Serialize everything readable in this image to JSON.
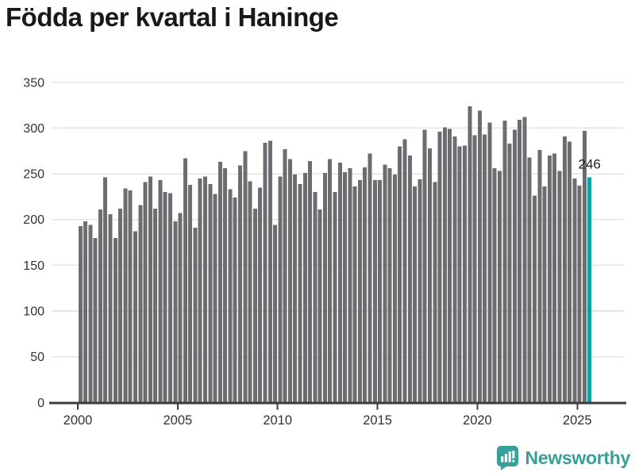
{
  "chart": {
    "title": "Födda per kvartal i Haninge"
  },
  "footer": {
    "brand": "Newsworthy"
  },
  "colors": {
    "bar": "#6c6c71",
    "highlight": "#0ba2a2",
    "axis": "#3d3d3f",
    "grid": "#e4e4e4",
    "title": "#191919",
    "tick_label": "#333333",
    "annotation": "#1f1f1f",
    "brand": "#38a098"
  },
  "chart_data": {
    "type": "bar",
    "title": "Födda per kvartal i Haninge",
    "frequency": "quarterly",
    "x_start": "2000-Q1",
    "x_end": "2025-Q3",
    "series": [
      {
        "name": "Födda per kvartal",
        "values": [
          193,
          198,
          194,
          180,
          211,
          246,
          206,
          180,
          212,
          234,
          232,
          187,
          216,
          241,
          247,
          212,
          243,
          230,
          229,
          198,
          207,
          267,
          238,
          191,
          245,
          247,
          239,
          228,
          263,
          256,
          233,
          224,
          259,
          275,
          242,
          212,
          235,
          284,
          286,
          194,
          247,
          277,
          266,
          249,
          239,
          251,
          264,
          230,
          211,
          251,
          266,
          230,
          262,
          252,
          256,
          236,
          243,
          257,
          272,
          243,
          243,
          260,
          256,
          249,
          280,
          288,
          270,
          236,
          244,
          298,
          278,
          241,
          296,
          301,
          299,
          291,
          280,
          281,
          324,
          292,
          319,
          293,
          306,
          256,
          253,
          308,
          283,
          298,
          309,
          312,
          268,
          226,
          276,
          236,
          270,
          272,
          253,
          291,
          285,
          245,
          237,
          297,
          246
        ]
      }
    ],
    "highlight": {
      "index": 102,
      "period": "2025-Q3",
      "value": 246
    },
    "ylim": [
      0,
      350
    ],
    "yticks": [
      0,
      50,
      100,
      150,
      200,
      250,
      300,
      350
    ],
    "xticks": [
      2000,
      2005,
      2010,
      2015,
      2020,
      2025
    ],
    "grid": "horizontal-only",
    "legend": "none"
  }
}
